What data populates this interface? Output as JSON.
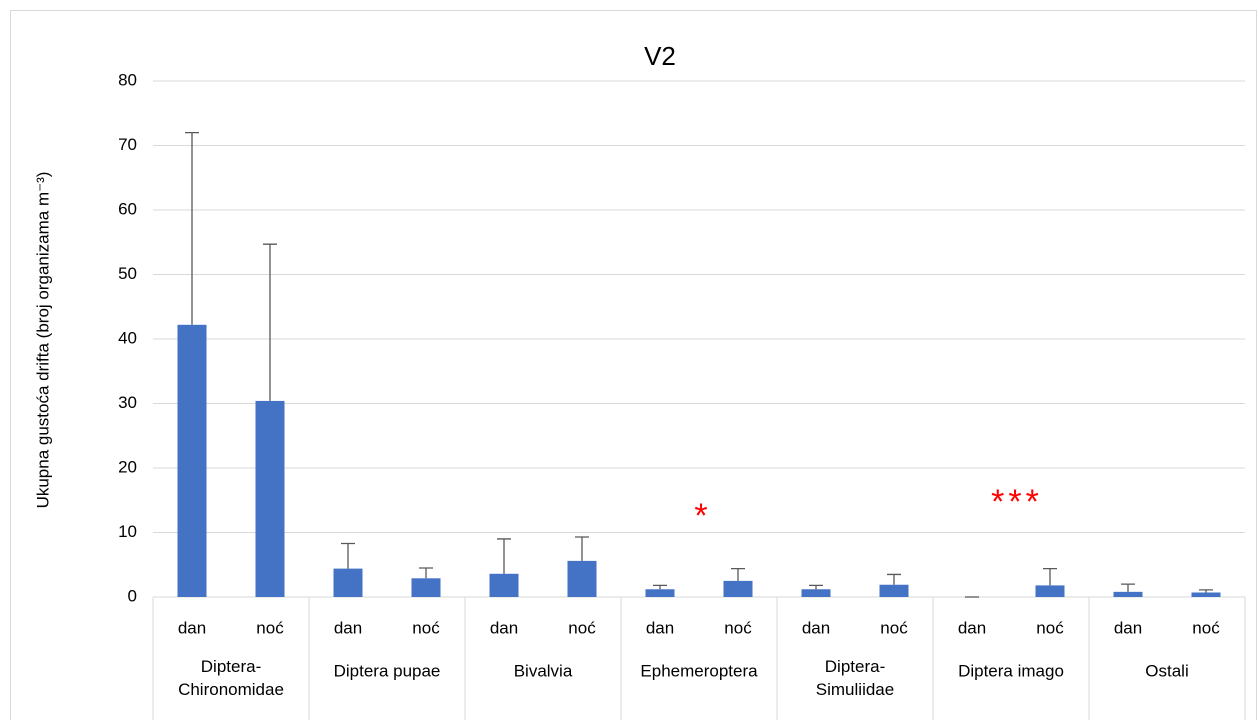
{
  "chart_data": {
    "type": "bar",
    "title": "V2",
    "y_label": "Ukupna gustoća drifta (broj organizama m⁻³)",
    "categories": [
      "dan",
      "noć",
      "dan",
      "noć",
      "dan",
      "noć",
      "dan",
      "noć",
      "dan",
      "noć",
      "dan",
      "noć",
      "dan",
      "noć"
    ],
    "groups": [
      "Diptera-Chironomidae",
      "Diptera pupae",
      "Bivalvia",
      "Ephemeroptera",
      "Diptera-Simuliidae",
      "Diptera imago",
      "Ostali"
    ],
    "values": [
      42.2,
      30.4,
      4.4,
      2.9,
      3.6,
      5.6,
      1.2,
      2.5,
      1.2,
      1.9,
      0,
      1.8,
      0.8,
      0.7
    ],
    "errors": [
      29.8,
      24.3,
      3.9,
      1.6,
      5.4,
      3.7,
      0.6,
      1.9,
      0.6,
      1.6,
      0,
      2.6,
      1.2,
      0.4
    ],
    "color": "#4472c4",
    "ylim": [
      0,
      80
    ],
    "yticks": [
      0,
      10,
      20,
      30,
      40,
      50,
      60,
      70,
      80
    ],
    "grid": true,
    "annotations": [
      {
        "text": "*",
        "color": "#ff0000"
      },
      {
        "text": "***",
        "color": "#ff0000"
      }
    ]
  }
}
